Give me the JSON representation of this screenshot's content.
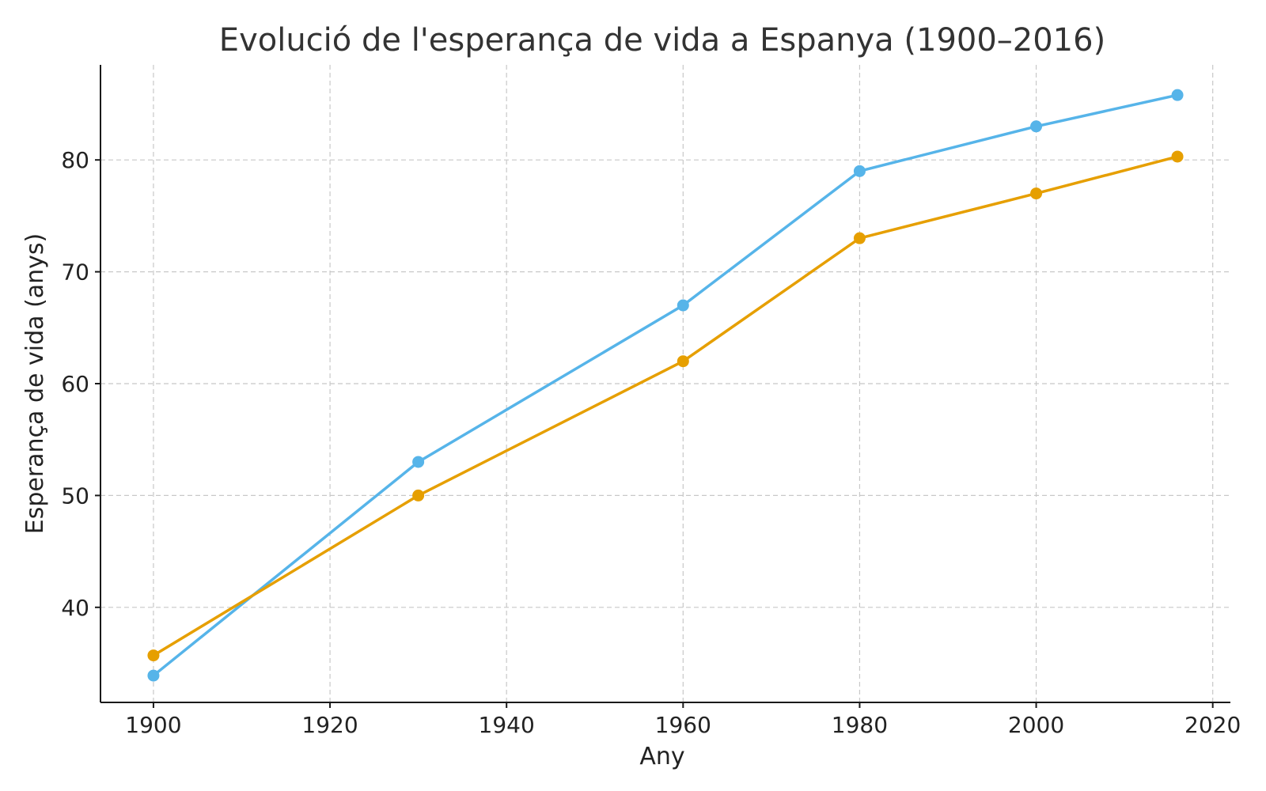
{
  "chart_data": {
    "type": "line",
    "title": "Evolució de l'esperança de vida a Espanya (1900–2016)",
    "xlabel": "Any",
    "ylabel": "Esperança de vida (anys)",
    "xlim": [
      1894,
      2022
    ],
    "ylim": [
      31.5,
      88.5
    ],
    "xticks": [
      1900,
      1920,
      1940,
      1960,
      1980,
      2000,
      2020
    ],
    "yticks": [
      40,
      50,
      60,
      70,
      80
    ],
    "grid": true,
    "x": [
      1900,
      1930,
      1960,
      1980,
      2000,
      2016
    ],
    "series": [
      {
        "color": "#56B4E9",
        "values": [
          33.9,
          53,
          67,
          79,
          83,
          85.8
        ]
      },
      {
        "color": "#E69F00",
        "values": [
          35.7,
          50,
          62,
          73,
          77,
          80.3
        ]
      }
    ]
  }
}
